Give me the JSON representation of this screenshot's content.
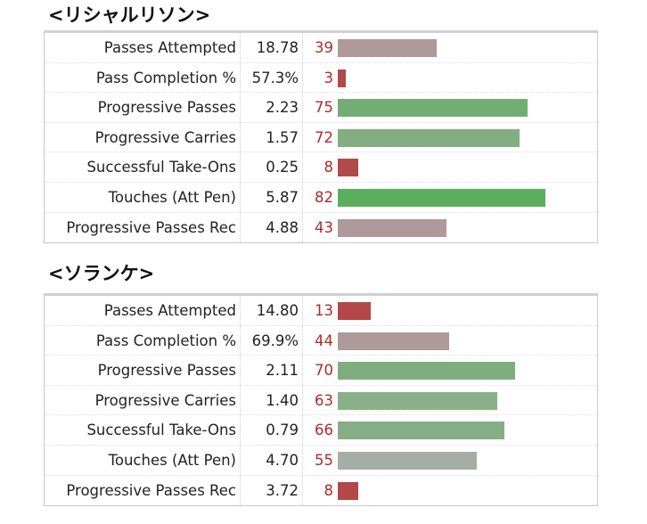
{
  "chart_data": [
    {
      "type": "bar",
      "title": "<リシャルリソン>",
      "categories": [
        "Passes Attempted",
        "Pass Completion %",
        "Progressive Passes",
        "Progressive Carries",
        "Successful Take-Ons",
        "Touches (Att Pen)",
        "Progressive Passes Rec"
      ],
      "per90": [
        "18.78",
        "57.3%",
        "2.23",
        "1.57",
        "0.25",
        "5.87",
        "4.88"
      ],
      "values": [
        39,
        3,
        75,
        72,
        8,
        82,
        43
      ],
      "bar_colors": [
        "#ae9a9a",
        "#b24848",
        "#74ad74",
        "#82ae82",
        "#b24a4a",
        "#5cae5c",
        "#ae9a9a"
      ],
      "xlim": [
        0,
        100
      ],
      "grid": false
    },
    {
      "type": "bar",
      "title": "<ソランケ>",
      "categories": [
        "Passes Attempted",
        "Pass Completion %",
        "Progressive Passes",
        "Progressive Carries",
        "Successful Take-Ons",
        "Touches (Att Pen)",
        "Progressive Passes Rec"
      ],
      "per90": [
        "14.80",
        "69.9%",
        "2.11",
        "1.40",
        "0.79",
        "4.70",
        "3.72"
      ],
      "values": [
        13,
        44,
        70,
        63,
        66,
        55,
        8
      ],
      "bar_colors": [
        "#b24848",
        "#ae9a9a",
        "#80ad80",
        "#8ab08a",
        "#86ae86",
        "#a4aea4",
        "#b24848"
      ],
      "xlim": [
        0,
        100
      ],
      "grid": false
    }
  ]
}
